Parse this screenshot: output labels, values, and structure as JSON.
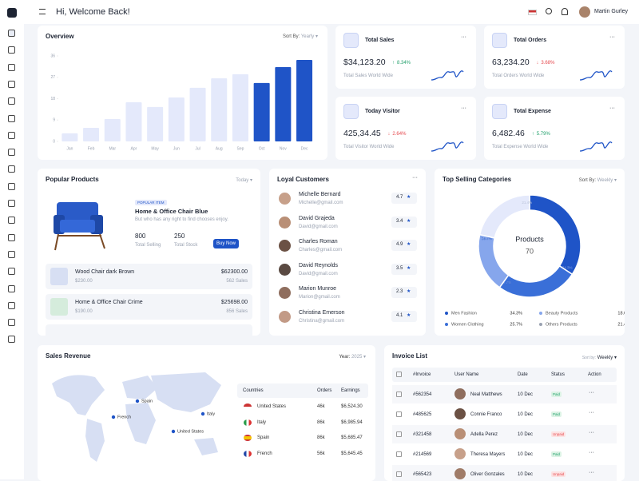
{
  "header": {
    "title": "Hi, Welcome Back!",
    "user": "Martin Gurley"
  },
  "chart_data": [
    {
      "type": "bar",
      "title": "Overview",
      "sort_label": "Sort By:",
      "sort_value": "Yearly",
      "categories": [
        "Jan",
        "Feb",
        "Mar",
        "Apr",
        "May",
        "Jun",
        "Jul",
        "Aug",
        "Sep",
        "Oct",
        "Nov",
        "Dec"
      ],
      "values": [
        3.4,
        5.7,
        9.4,
        16.5,
        14.5,
        18.5,
        22.6,
        26.6,
        28.3,
        24.6,
        31.3,
        34.3
      ],
      "colors": [
        "#e4e9fb",
        "#e4e9fb",
        "#e4e9fb",
        "#e4e9fb",
        "#e4e9fb",
        "#e4e9fb",
        "#e4e9fb",
        "#e4e9fb",
        "#e4e9fb",
        "#1f54c7",
        "#1f54c7",
        "#1f54c7"
      ],
      "ylim": [
        0,
        36
      ],
      "yticks": [
        0,
        9,
        18,
        27,
        36
      ]
    },
    {
      "type": "donut",
      "title": "Top Selling Categories",
      "sort_label": "Sort By:",
      "sort_value": "Weekly",
      "center_label": "Products",
      "center_value": "70",
      "categories": [
        "Men Fashion",
        "Women Clothing",
        "Beauty Products",
        "Others Products"
      ],
      "values": [
        34.3,
        25.7,
        18.6,
        21.4
      ],
      "value_labels": [
        "34.3%",
        "25.7%",
        "18.6%",
        "21.4%"
      ],
      "colors": [
        "#1f54c7",
        "#3a6fd8",
        "#86a6ec",
        "#e4e9fb"
      ]
    }
  ],
  "stats": [
    {
      "title": "Total Sales",
      "value": "$34,123.20",
      "change": "8.34%",
      "direction": "up",
      "subtitle": "Total Sales World Wide"
    },
    {
      "title": "Total Orders",
      "value": "63,234.20",
      "change": "3.68%",
      "direction": "down",
      "subtitle": "Total Orders World Wide"
    },
    {
      "title": "Today Visitor",
      "value": "425,34.45",
      "change": "2.64%",
      "direction": "down",
      "subtitle": "Total Visitor World Wide"
    },
    {
      "title": "Total Expense",
      "value": "6,482.46",
      "change": "5.79%",
      "direction": "up",
      "subtitle": "Total Expense World Wide"
    }
  ],
  "popular_products": {
    "title": "Popular Products",
    "period": "Today",
    "badge": "POPULAR ITEM",
    "name": "Home & Office Chair Blue",
    "description": "But who has any right to find chooses enjoy.",
    "selling": "800",
    "selling_label": "Total Selling",
    "stock": "250",
    "stock_label": "Total Stock",
    "button": "Buy Now",
    "items": [
      {
        "name": "Wood Chair dark Brown",
        "price": "$230.00",
        "total": "$62300.00",
        "sales": "562 Sales"
      },
      {
        "name": "Home & Office Chair Crime",
        "price": "$190.00",
        "total": "$25698.00",
        "sales": "856 Sales"
      }
    ]
  },
  "loyal_customers": {
    "title": "Loyal Customers",
    "customers": [
      {
        "name": "Michelle Bernard",
        "email": "Michelle@gmail.com",
        "rating": "4.7"
      },
      {
        "name": "David Grajeda",
        "email": "David@gmail.com",
        "rating": "3.4"
      },
      {
        "name": "Charles Roman",
        "email": "Charles@gmail.com",
        "rating": "4.9"
      },
      {
        "name": "David Reynolds",
        "email": "David@gmail.com",
        "rating": "3.5"
      },
      {
        "name": "Marion Munroe",
        "email": "Marion@gmail.com",
        "rating": "2.3"
      },
      {
        "name": "Christina Emerson",
        "email": "Christina@gmail.com",
        "rating": "4.1"
      }
    ]
  },
  "sales_revenue": {
    "title": "Sales Revenue",
    "year_label": "Year:",
    "year": "2025",
    "map_labels": [
      "Spain",
      "French",
      "Italy",
      "United States"
    ],
    "columns": [
      "Countries",
      "Orders",
      "Earnings"
    ],
    "rows": [
      [
        "United States",
        "46k",
        "$6,524.30"
      ],
      [
        "Italy",
        "86k",
        "$6,985.94"
      ],
      [
        "Spain",
        "86k",
        "$5,685.47"
      ],
      [
        "French",
        "56k",
        "$5,645.45"
      ]
    ]
  },
  "invoices": {
    "title": "Invoice List",
    "sort_label": "Sort by:",
    "sort_value": "Weekly",
    "columns": [
      "#Invoice",
      "User Name",
      "Date",
      "Status",
      "Action"
    ],
    "rows": [
      [
        "#562354",
        "Neal Matthews",
        "10 Dec",
        "Paid"
      ],
      [
        "#485625",
        "Connie Franco",
        "10 Dec",
        "Paid"
      ],
      [
        "#321458",
        "Adella Perez",
        "10 Dec",
        "Unpaid"
      ],
      [
        "#214569",
        "Theresa Mayers",
        "10 Dec",
        "Paid"
      ],
      [
        "#565423",
        "Oliver Gonzales",
        "10 Dec",
        "Unpaid"
      ]
    ]
  }
}
